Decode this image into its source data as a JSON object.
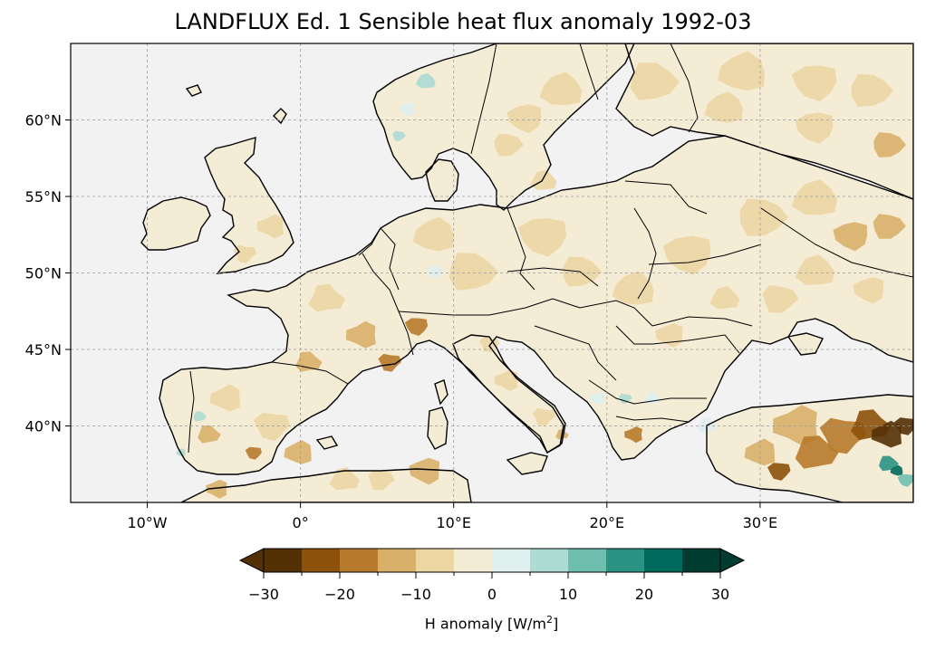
{
  "title": "LANDFLUX Ed. 1 Sensible heat flux anomaly 1992-03",
  "map": {
    "lon_range": [
      -15,
      40
    ],
    "lat_range": [
      35,
      65
    ],
    "grid": true,
    "ocean_color": "#f2f2f2",
    "land_base_color": "#f5ecd6",
    "lon_ticks": [
      {
        "value": -10,
        "label": "10°W"
      },
      {
        "value": 0,
        "label": "0°"
      },
      {
        "value": 10,
        "label": "10°E"
      },
      {
        "value": 20,
        "label": "20°E"
      },
      {
        "value": 30,
        "label": "30°E"
      }
    ],
    "lat_ticks": [
      {
        "value": 60,
        "label": "60°N"
      },
      {
        "value": 55,
        "label": "55°N"
      },
      {
        "value": 50,
        "label": "50°N"
      },
      {
        "value": 45,
        "label": "45°N"
      },
      {
        "value": 40,
        "label": "40°N"
      }
    ]
  },
  "colorbar": {
    "label_main": "H anomaly [W/m",
    "label_sup": "2",
    "label_end": "]",
    "min": -30,
    "max": 30,
    "tick_labels": [
      {
        "value": -30,
        "label": "−30"
      },
      {
        "value": -20,
        "label": "−20"
      },
      {
        "value": -10,
        "label": "−10"
      },
      {
        "value": 0,
        "label": "0"
      },
      {
        "value": 10,
        "label": "10"
      },
      {
        "value": 20,
        "label": "20"
      },
      {
        "value": 30,
        "label": "30"
      }
    ],
    "bins": [
      {
        "from": -30,
        "to": -25,
        "color": "#543005"
      },
      {
        "from": -25,
        "to": -20,
        "color": "#8c510a"
      },
      {
        "from": -20,
        "to": -15,
        "color": "#b87a2c"
      },
      {
        "from": -15,
        "to": -10,
        "color": "#d8b06a"
      },
      {
        "from": -10,
        "to": -5,
        "color": "#ecd6a4"
      },
      {
        "from": -5,
        "to": 0,
        "color": "#f5ecd6"
      },
      {
        "from": 0,
        "to": 5,
        "color": "#dff0ee"
      },
      {
        "from": 5,
        "to": 10,
        "color": "#acdcd4"
      },
      {
        "from": 10,
        "to": 15,
        "color": "#6fbfb1"
      },
      {
        "from": 15,
        "to": 20,
        "color": "#2b9384"
      },
      {
        "from": 20,
        "to": 25,
        "color": "#016a5e"
      },
      {
        "from": 25,
        "to": 30,
        "color": "#003c30"
      }
    ],
    "under_color": "#543005",
    "over_color": "#003c30"
  }
}
